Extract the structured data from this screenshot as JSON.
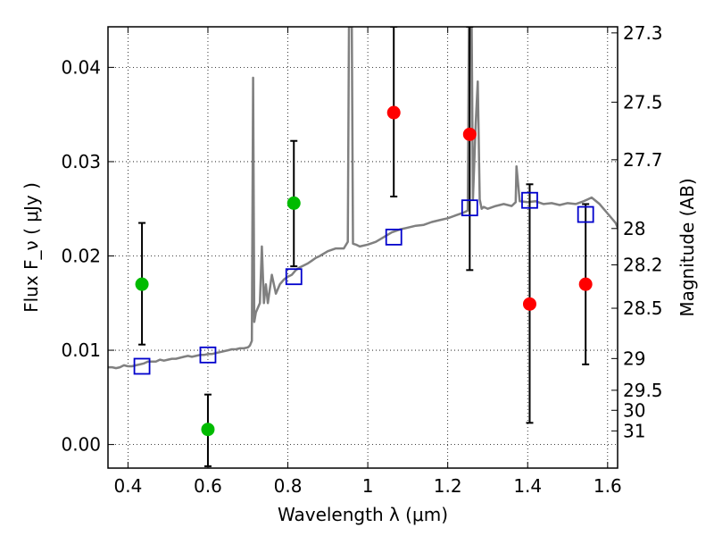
{
  "chart_data": {
    "type": "scatter",
    "xlabel": "Wavelength  λ (μm)",
    "ylabel": "Flux  F_ν  ( μJy )",
    "ylabel_right": "Magnitude (AB)",
    "xlim": [
      0.35,
      1.625
    ],
    "ylim": [
      -0.0025,
      0.0443
    ],
    "grid": true,
    "x_ticks": [
      {
        "value": 0.4,
        "label": "0.4"
      },
      {
        "value": 0.6,
        "label": "0.6"
      },
      {
        "value": 0.8,
        "label": "0.8"
      },
      {
        "value": 1.0,
        "label": "1"
      },
      {
        "value": 1.2,
        "label": "1.2"
      },
      {
        "value": 1.4,
        "label": "1.4"
      },
      {
        "value": 1.6,
        "label": "1.6"
      }
    ],
    "y_ticks": [
      {
        "value": 0.0,
        "label": "0.00"
      },
      {
        "value": 0.01,
        "label": "0.01"
      },
      {
        "value": 0.02,
        "label": "0.02"
      },
      {
        "value": 0.03,
        "label": "0.03"
      },
      {
        "value": 0.04,
        "label": "0.04"
      }
    ],
    "right_ticks": [
      {
        "mag": 27.3,
        "label": "27.3"
      },
      {
        "mag": 27.5,
        "label": "27.5"
      },
      {
        "mag": 27.7,
        "label": "27.7"
      },
      {
        "mag": 28.0,
        "label": "28"
      },
      {
        "mag": 28.2,
        "label": "28.2"
      },
      {
        "mag": 28.5,
        "label": "28.5"
      },
      {
        "mag": 29.0,
        "label": "29"
      },
      {
        "mag": 29.5,
        "label": "29.5"
      },
      {
        "mag": 30.0,
        "label": "30"
      },
      {
        "mag": 31.0,
        "label": "31"
      }
    ],
    "series": [
      {
        "kind": "line",
        "color": "#808080",
        "x": [
          0.35,
          0.36,
          0.37,
          0.38,
          0.39,
          0.4,
          0.41,
          0.42,
          0.43,
          0.44,
          0.45,
          0.46,
          0.47,
          0.48,
          0.49,
          0.5,
          0.51,
          0.52,
          0.53,
          0.54,
          0.55,
          0.56,
          0.57,
          0.58,
          0.59,
          0.6,
          0.61,
          0.62,
          0.63,
          0.64,
          0.65,
          0.66,
          0.67,
          0.68,
          0.69,
          0.7,
          0.705,
          0.71,
          0.713,
          0.716,
          0.72,
          0.73,
          0.735,
          0.74,
          0.745,
          0.75,
          0.76,
          0.77,
          0.78,
          0.79,
          0.8,
          0.81,
          0.82,
          0.83,
          0.84,
          0.85,
          0.86,
          0.87,
          0.88,
          0.9,
          0.92,
          0.94,
          0.95,
          0.953,
          0.956,
          0.96,
          0.963,
          0.97,
          0.98,
          1.0,
          1.02,
          1.04,
          1.06,
          1.08,
          1.1,
          1.12,
          1.14,
          1.16,
          1.18,
          1.2,
          1.22,
          1.24,
          1.25,
          1.253,
          1.256,
          1.26,
          1.263,
          1.27,
          1.275,
          1.28,
          1.285,
          1.29,
          1.3,
          1.32,
          1.34,
          1.36,
          1.37,
          1.372,
          1.38,
          1.4,
          1.42,
          1.44,
          1.46,
          1.48,
          1.5,
          1.52,
          1.54,
          1.55,
          1.56,
          1.58,
          1.6,
          1.62,
          1.625
        ],
        "y": [
          0.0082,
          0.0082,
          0.0081,
          0.0082,
          0.0084,
          0.0083,
          0.0083,
          0.0084,
          0.0085,
          0.0086,
          0.0088,
          0.0088,
          0.0088,
          0.009,
          0.0089,
          0.009,
          0.0091,
          0.0091,
          0.0092,
          0.0093,
          0.0094,
          0.0093,
          0.0094,
          0.0095,
          0.0095,
          0.0096,
          0.0096,
          0.0097,
          0.0098,
          0.0099,
          0.01,
          0.0101,
          0.0101,
          0.0102,
          0.0102,
          0.0103,
          0.0105,
          0.011,
          0.0389,
          0.013,
          0.014,
          0.015,
          0.021,
          0.015,
          0.017,
          0.015,
          0.018,
          0.016,
          0.017,
          0.0175,
          0.0178,
          0.018,
          0.0185,
          0.0188,
          0.019,
          0.0192,
          0.0195,
          0.0198,
          0.02,
          0.0205,
          0.0208,
          0.0208,
          0.0215,
          0.0443,
          0.0443,
          0.0443,
          0.0213,
          0.0212,
          0.021,
          0.0212,
          0.0215,
          0.022,
          0.0225,
          0.0228,
          0.023,
          0.0232,
          0.0233,
          0.0236,
          0.0238,
          0.024,
          0.0243,
          0.0246,
          0.0248,
          0.0443,
          0.0443,
          0.0443,
          0.026,
          0.034,
          0.0385,
          0.026,
          0.025,
          0.0252,
          0.025,
          0.0253,
          0.0255,
          0.0253,
          0.0257,
          0.0295,
          0.0258,
          0.0257,
          0.0258,
          0.0255,
          0.0256,
          0.0254,
          0.0256,
          0.0255,
          0.0258,
          0.026,
          0.0262,
          0.0255,
          0.0245,
          0.0235,
          0.023
        ]
      },
      {
        "kind": "errorbar",
        "color": "#000000",
        "x": [
          0.435,
          0.6,
          0.815,
          1.065,
          1.255,
          1.405,
          1.545
        ],
        "y_low": [
          0.0106,
          -0.0023,
          0.0189,
          0.0263,
          0.0185,
          0.0023,
          0.0085
        ],
        "y_high": [
          0.0235,
          0.0053,
          0.0322,
          0.0443,
          0.0443,
          0.0276,
          0.0255
        ]
      },
      {
        "kind": "points",
        "marker": "circle",
        "color": "#00bb00",
        "x": [
          0.435,
          0.6,
          0.815
        ],
        "y": [
          0.017,
          0.0016,
          0.0256
        ]
      },
      {
        "kind": "points",
        "marker": "circle",
        "color": "#ff0000",
        "x": [
          1.065,
          1.255,
          1.405,
          1.545
        ],
        "y": [
          0.0352,
          0.0329,
          0.0149,
          0.017
        ]
      },
      {
        "kind": "points",
        "marker": "open-square",
        "color": "#0000cc",
        "x": [
          0.435,
          0.6,
          0.815,
          1.065,
          1.255,
          1.405,
          1.545
        ],
        "y": [
          0.0083,
          0.0095,
          0.0178,
          0.022,
          0.0251,
          0.0259,
          0.0244
        ]
      }
    ]
  }
}
